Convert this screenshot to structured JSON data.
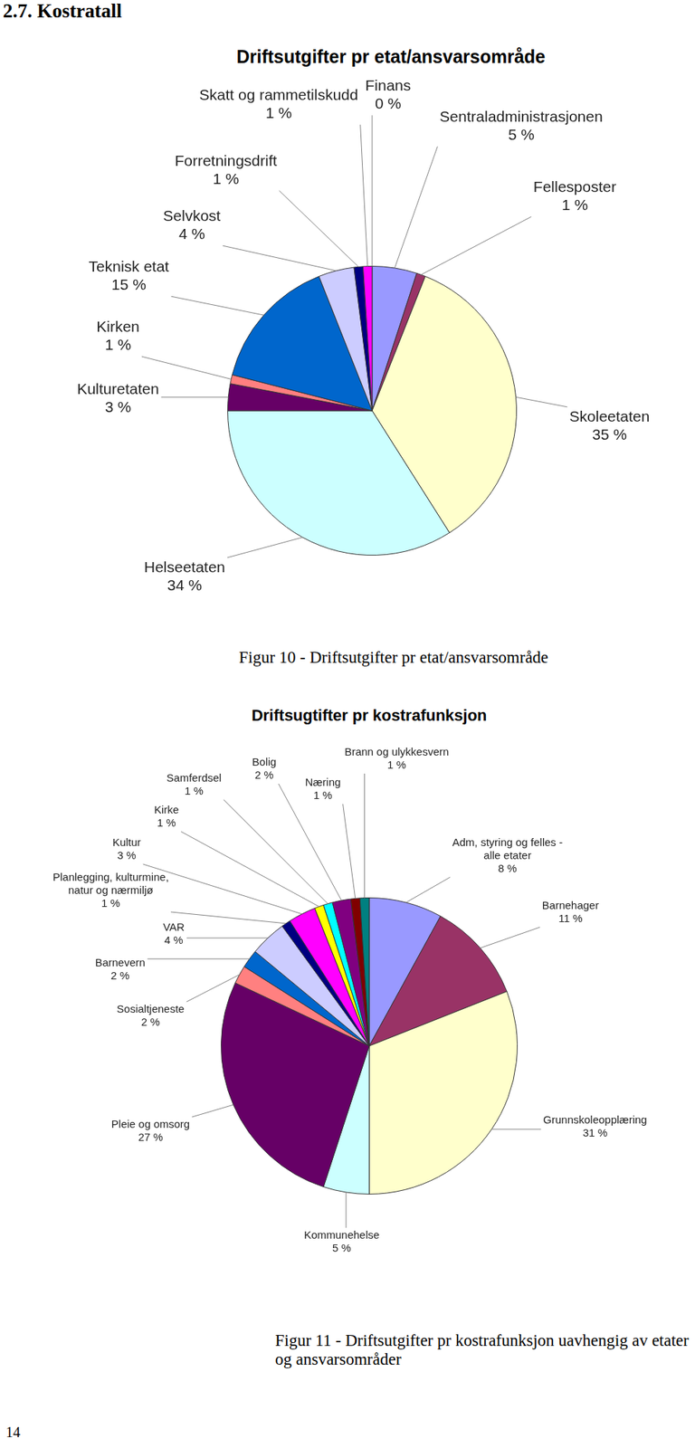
{
  "header": {
    "title": "2.7. Kostratall"
  },
  "chart_data": [
    {
      "type": "pie",
      "title": "Driftsutgifter pr etat/ansvarsområde",
      "categories": [
        "Sentraladministrasjonen",
        "Fellesposter",
        "Skoleetaten",
        "Helseetaten",
        "Kulturetaten",
        "Kirken",
        "Teknisk etat",
        "Selvkost",
        "Forretningsdrift",
        "Skatt og rammetilskudd",
        "Finans"
      ],
      "values": [
        5,
        1,
        35,
        34,
        3,
        1,
        15,
        4,
        1,
        1,
        0
      ],
      "value_labels": [
        "5 %",
        "1 %",
        "35 %",
        "34 %",
        "3 %",
        "1 %",
        "15 %",
        "4 %",
        "1 %",
        "1 %",
        "0 %"
      ],
      "colors": [
        "#9999ff",
        "#993366",
        "#ffffcc",
        "#ccffff",
        "#660066",
        "#ff8080",
        "#0066cc",
        "#ccccff",
        "#000080",
        "#ff00ff",
        "#ffff00"
      ],
      "data_labels": true,
      "caption": "Figur 10 - Driftsutgifter pr etat/ansvarsområde"
    },
    {
      "type": "pie",
      "title": "Driftsugtifter pr kostrafunksjon",
      "categories": [
        "Adm, styring og felles - alle etater",
        "Barnehager",
        "Grunnskoleopplæring",
        "Kommunehelse",
        "Pleie og omsorg",
        "Sosialtjeneste",
        "Barnevern",
        "VAR",
        "Planlegging, kulturmine, natur og nærmiljø",
        "Kultur",
        "Kirke",
        "Samferdsel",
        "Bolig",
        "Næring",
        "Brann og ulykkesvern"
      ],
      "values": [
        8,
        11,
        31,
        5,
        27,
        2,
        2,
        4,
        1,
        3,
        1,
        1,
        2,
        1,
        1
      ],
      "value_labels": [
        "8 %",
        "11 %",
        "31 %",
        "5 %",
        "27 %",
        "2 %",
        "2 %",
        "4 %",
        "1 %",
        "3 %",
        "1 %",
        "1 %",
        "2 %",
        "1 %",
        "1 %"
      ],
      "colors": [
        "#9999ff",
        "#993366",
        "#ffffcc",
        "#ccffff",
        "#660066",
        "#ff8080",
        "#0066cc",
        "#ccccff",
        "#000080",
        "#ff00ff",
        "#ffff00",
        "#00ffff",
        "#800080",
        "#800000",
        "#008080"
      ],
      "data_labels": true,
      "caption": "Figur 11 - Driftsutgifter pr kostrafunksjon uavhengig av etater og ansvarsområder"
    }
  ],
  "page_number": "14"
}
